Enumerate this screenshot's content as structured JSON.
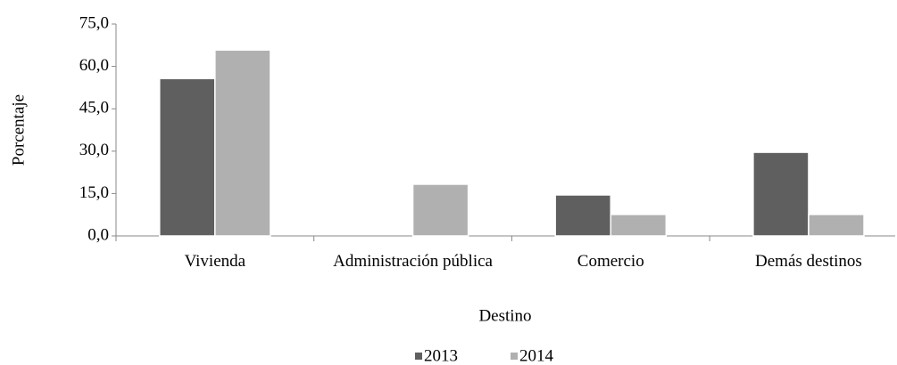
{
  "chart_data": {
    "type": "bar",
    "x_label": "Destino",
    "y_label": "Porcentaje",
    "categories": [
      "Vivienda",
      "Administración pública",
      "Comercio",
      "Demás destinos"
    ],
    "series": [
      {
        "name": "2013",
        "color": "#5f5f5f",
        "values": [
          55.7,
          0,
          14.5,
          29.6
        ]
      },
      {
        "name": "2014",
        "color": "#b0b0b0",
        "values": [
          65.8,
          18.3,
          7.6,
          7.6
        ]
      }
    ],
    "ylim": [
      0,
      75
    ],
    "yticks": [
      {
        "value": 0,
        "label": "0,0"
      },
      {
        "value": 15,
        "label": "15,0"
      },
      {
        "value": 30,
        "label": "30,0"
      },
      {
        "value": 45,
        "label": "45,0"
      },
      {
        "value": 60,
        "label": "60,0"
      },
      {
        "value": 75,
        "label": "75,0"
      }
    ],
    "legend": "bottom"
  }
}
